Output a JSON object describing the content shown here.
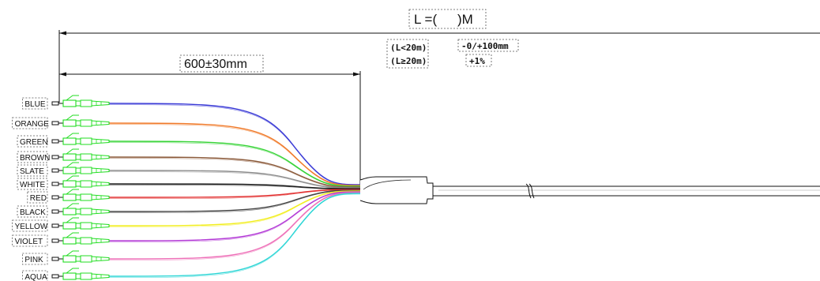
{
  "length_dimension": {
    "label_prefix": "L =(",
    "label_suffix": ")M",
    "tolerance_rows": [
      {
        "condition": "(L<20m)",
        "tolerance": "-0/+100mm"
      },
      {
        "condition": "(L≥20m)",
        "tolerance": "+1%"
      }
    ]
  },
  "breakout_dimension": {
    "label": "600±30mm"
  },
  "fibers": [
    {
      "name": "BLUE",
      "color": "#3b3bd6"
    },
    {
      "name": "ORANGE",
      "color": "#f07a2a"
    },
    {
      "name": "GREEN",
      "color": "#36d336"
    },
    {
      "name": "BROWN",
      "color": "#8b5a3a"
    },
    {
      "name": "SLATE",
      "color": "#8c8c8c"
    },
    {
      "name": "WHITE",
      "color": "#1a1a1a"
    },
    {
      "name": "RED",
      "color": "#e23030"
    },
    {
      "name": "BLACK",
      "color": "#444444"
    },
    {
      "name": "YELLOW",
      "color": "#f2ee1e"
    },
    {
      "name": "VIOLET",
      "color": "#b33ad6"
    },
    {
      "name": "PINK",
      "color": "#ee70b8"
    },
    {
      "name": "AQUA",
      "color": "#2ed6d6"
    }
  ],
  "connector_color": "#22dd22"
}
